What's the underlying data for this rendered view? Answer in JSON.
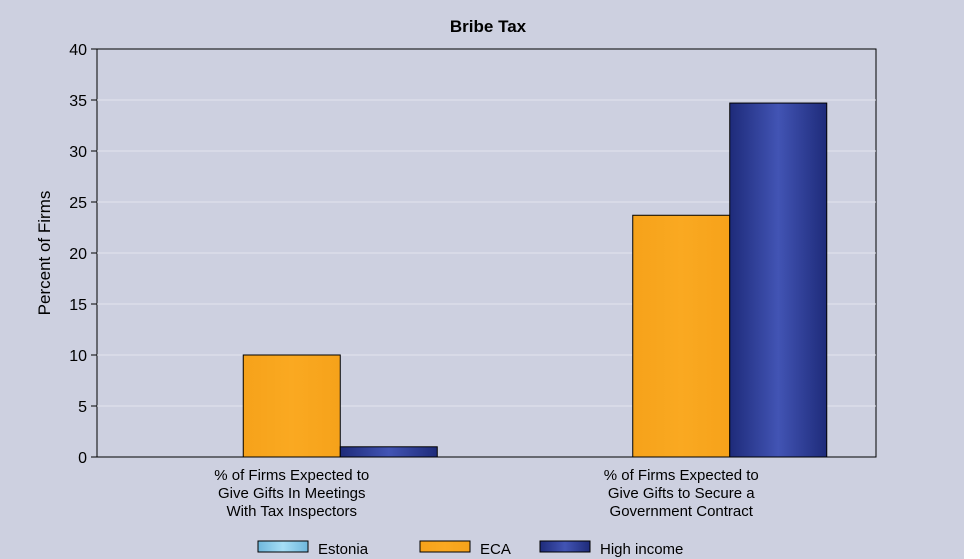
{
  "chart_data": {
    "type": "bar",
    "title": "Bribe Tax",
    "xlabel": "",
    "ylabel": "Percent of Firms",
    "ylim": [
      0,
      40
    ],
    "yticks": [
      0,
      5,
      10,
      15,
      20,
      25,
      30,
      35,
      40
    ],
    "categories": [
      [
        "% of Firms Expected to",
        "Give Gifts In Meetings",
        "With Tax Inspectors"
      ],
      [
        "% of Firms Expected to",
        "Give Gifts to Secure a",
        "Government Contract"
      ]
    ],
    "series": [
      {
        "name": "Estonia",
        "values": [
          0,
          0
        ],
        "color": "#87cdee"
      },
      {
        "name": "ECA",
        "values": [
          10,
          23.7
        ],
        "color": "#f8a51c"
      },
      {
        "name": "High income",
        "values": [
          1,
          34.7
        ],
        "color": "#2e3f9e"
      }
    ],
    "grid": true,
    "legend": "bottom"
  }
}
